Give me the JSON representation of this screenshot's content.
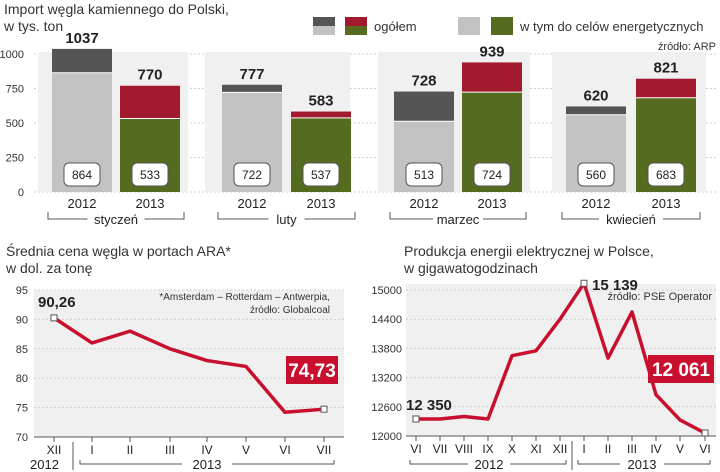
{
  "chart_data": [
    {
      "type": "bar",
      "title": "Import węgla kamiennego do Polski,",
      "subtitle": "w tys. ton",
      "source": "źródło: ARP",
      "legend": {
        "total": "ogółem",
        "energy": "w tym do celów energetycznych",
        "position": "top-right"
      },
      "months": [
        "styczeń",
        "luty",
        "marzec",
        "kwiecień"
      ],
      "years": [
        "2012",
        "2013"
      ],
      "series": [
        {
          "name": "ogółem",
          "values_2012": [
            1037,
            777,
            728,
            620
          ],
          "values_2013": [
            770,
            583,
            939,
            821
          ]
        },
        {
          "name": "w tym do celów energetycznych",
          "values_2012": [
            864,
            722,
            513,
            560
          ],
          "values_2013": [
            533,
            537,
            724,
            683
          ]
        }
      ],
      "y_ticks": [
        "0",
        "250",
        "500",
        "750",
        "1000"
      ],
      "ylim": [
        0,
        1100
      ],
      "colors": {
        "total_2012": "#555555",
        "energy_2012": "#c2c2c2",
        "total_2013": "#a31a2e",
        "energy_2013": "#556b1f"
      }
    },
    {
      "type": "line",
      "title": "Średnia cena węgla w portach ARA*",
      "subtitle": "w dol. za tonę",
      "note_line1": "*Amsterdam – Rotterdam – Antwerpia,",
      "note_line2": "źródło: Globalcoal",
      "x": [
        "XII",
        "I",
        "II",
        "III",
        "IV",
        "V",
        "VI",
        "VII"
      ],
      "year_labels": [
        "2012",
        "2013"
      ],
      "values": [
        90.26,
        86,
        88,
        85,
        83,
        82,
        74.2,
        74.73
      ],
      "first_label": "90,26",
      "last_label": "74,73",
      "y_ticks": [
        "70",
        "75",
        "80",
        "85",
        "90",
        "95"
      ],
      "ylim": [
        70,
        95
      ],
      "color": "#c8102e"
    },
    {
      "type": "line",
      "title": "Produkcja energii elektrycznej w Polsce,",
      "subtitle": "w gigawatogodzinach",
      "source": "źródło: PSE Operator",
      "x": [
        "VI",
        "VII",
        "VIII",
        "IX",
        "X",
        "XI",
        "XII",
        "I",
        "II",
        "III",
        "IV",
        "V",
        "VI"
      ],
      "year_labels": [
        "2012",
        "2013"
      ],
      "values": [
        12350,
        12350,
        12400,
        12350,
        13650,
        13750,
        14400,
        15139,
        13600,
        14550,
        12850,
        12330,
        12061
      ],
      "first_label": "12 350",
      "max_label": "15 139",
      "last_label": "12 061",
      "y_ticks": [
        "12000",
        "12600",
        "13200",
        "13800",
        "14400",
        "15000"
      ],
      "ylim": [
        12000,
        15100
      ],
      "color": "#c8102e"
    }
  ]
}
